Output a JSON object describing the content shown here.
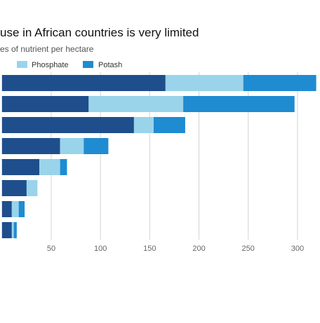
{
  "chart_data": {
    "type": "bar",
    "orientation": "horizontal",
    "stacked": true,
    "title": "use in African countries is very limited",
    "subtitle": "es of nutrient per hectare",
    "x_ticks": [
      50,
      100,
      150,
      200,
      250,
      300
    ],
    "xlim": [
      -2,
      320
    ],
    "grid": true,
    "legend_placement": "top-left",
    "series": [
      {
        "name": "",
        "color": "#1f4e8c",
        "values": [
          166,
          88,
          134,
          59,
          38,
          25,
          10,
          10
        ]
      },
      {
        "name": "Phosphate",
        "color": "#99d4ea",
        "values": [
          79,
          96,
          20,
          24,
          21,
          11,
          7,
          2
        ]
      },
      {
        "name": "Potash",
        "color": "#1f8bd1",
        "values": [
          74,
          113,
          32,
          25,
          7,
          0,
          6,
          3
        ]
      }
    ]
  }
}
